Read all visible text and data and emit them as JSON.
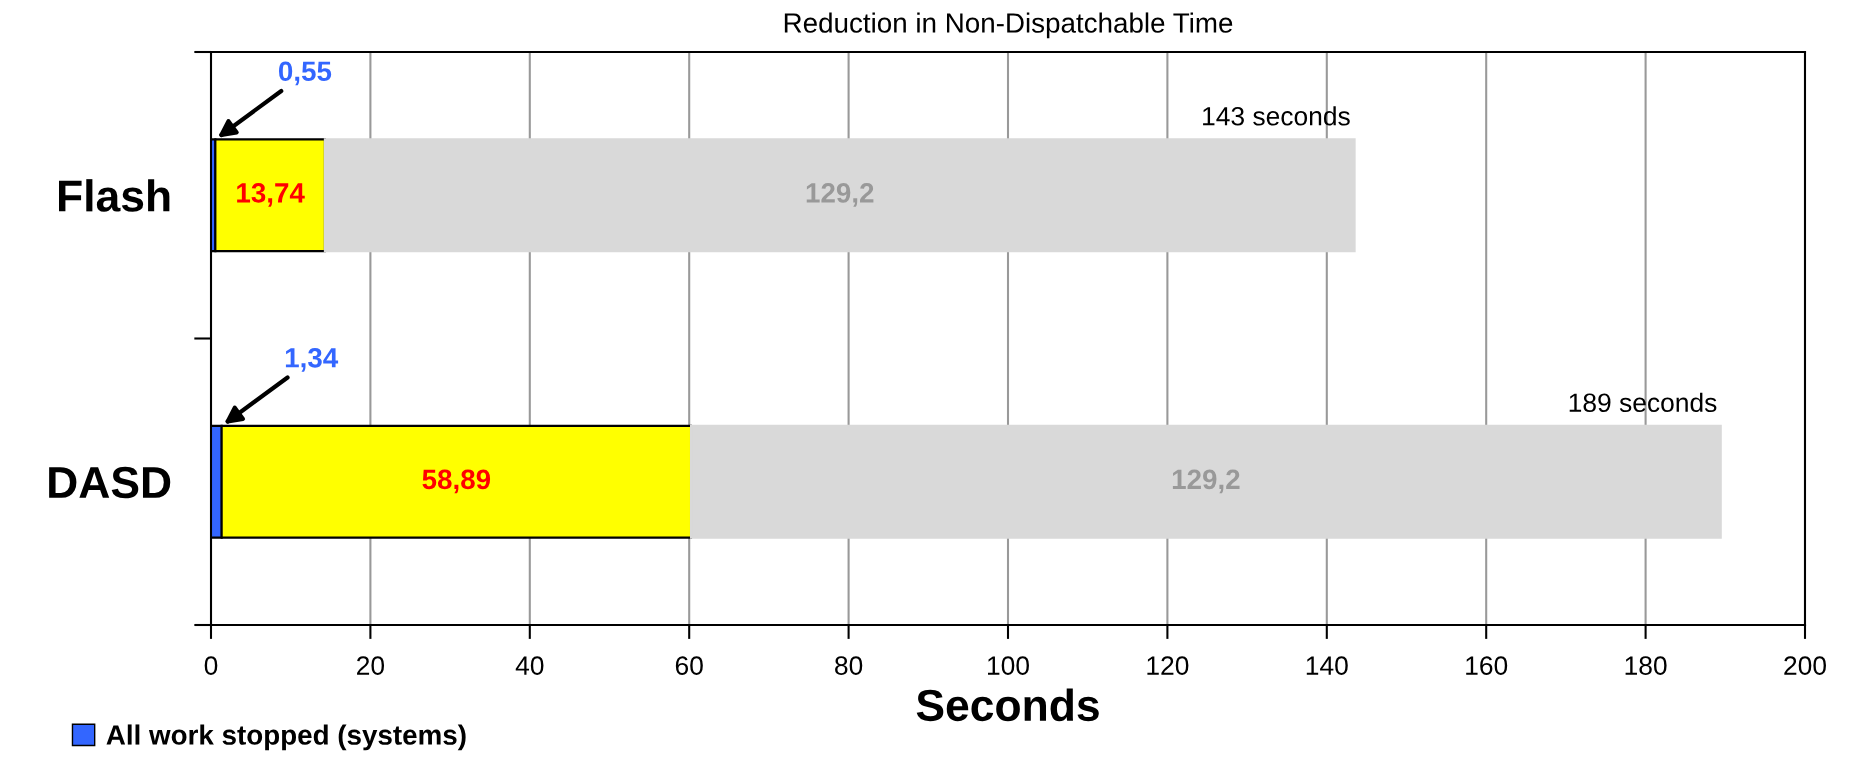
{
  "chart_data": {
    "type": "bar",
    "orientation": "horizontal",
    "stacked": true,
    "title": "Reduction in Non-Dispatchable Time",
    "xlabel": "Seconds",
    "categories": [
      "Flash",
      "DASD"
    ],
    "series": [
      {
        "name": "All work stopped (systems)",
        "color": "#3366ff",
        "values": [
          0.55,
          1.34
        ],
        "value_labels": [
          "0,55",
          "1,34"
        ]
      },
      {
        "color": "#ffff00",
        "values": [
          13.74,
          58.89
        ],
        "value_labels": [
          "13,74",
          "58,89"
        ]
      },
      {
        "color": "#d9d9d9",
        "values": [
          129.2,
          129.2
        ],
        "value_labels": [
          "129,2",
          "129,2"
        ]
      }
    ],
    "xlim": [
      0,
      200
    ],
    "xticks": [
      0,
      20,
      40,
      60,
      80,
      100,
      120,
      140,
      160,
      180,
      200
    ],
    "grid": "x",
    "legend": "bottom left",
    "annotations": [
      {
        "text": "143 seconds",
        "x": 143,
        "y": "Flash"
      },
      {
        "text": "189 seconds",
        "x": 189,
        "y": "DASD"
      }
    ]
  }
}
